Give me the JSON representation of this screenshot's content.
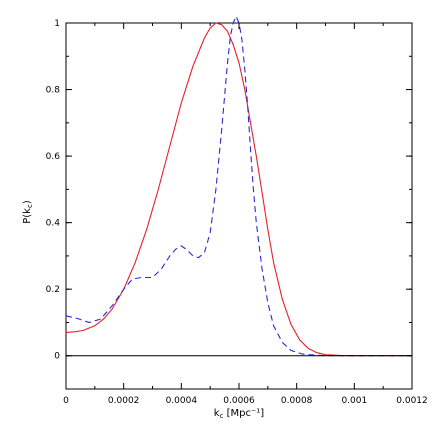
{
  "chart_data": {
    "type": "line",
    "xlabel": "k_c [Mpc⁻¹]",
    "xlabel_main": "k",
    "xlabel_sub": "c",
    "xlabel_rest": " [Mpc⁻¹]",
    "ylabel_main": "P(k",
    "ylabel_sub": "c",
    "ylabel_rest": ")",
    "xlim": [
      0,
      0.0012
    ],
    "ylim": [
      -0.1,
      1
    ],
    "x_ticks": [
      0,
      0.0002,
      0.0004,
      0.0006,
      0.0008,
      0.001,
      0.0012
    ],
    "x_tick_labels": [
      "0",
      "0.0002",
      "0.0004",
      "0.0006",
      "0.0008",
      "0.001",
      "0.0012"
    ],
    "y_ticks": [
      0,
      0.2,
      0.4,
      0.6,
      0.8,
      1
    ],
    "y_tick_labels": [
      "0",
      "0.2",
      "0.4",
      "0.6",
      "0.8",
      "1"
    ],
    "zero_line": 0,
    "grid": false,
    "series": [
      {
        "color": "#e8202a",
        "dash": "solid",
        "x": [
          0,
          3e-05,
          6e-05,
          0.0001,
          0.00013,
          0.00016,
          0.0002,
          0.00024,
          0.00028,
          0.00032,
          0.00036,
          0.0004,
          0.00044,
          0.00048,
          0.0005,
          0.00052,
          0.00054,
          0.00056,
          0.00058,
          0.0006,
          0.00062,
          0.00064,
          0.00066,
          0.00068,
          0.0007,
          0.00072,
          0.00075,
          0.00078,
          0.00081,
          0.00084,
          0.00087,
          0.0009,
          0.00095,
          0.001,
          0.0011,
          0.0012
        ],
        "y": [
          0.07,
          0.072,
          0.076,
          0.09,
          0.11,
          0.14,
          0.2,
          0.28,
          0.38,
          0.5,
          0.63,
          0.76,
          0.87,
          0.955,
          0.985,
          1.0,
          0.995,
          0.975,
          0.935,
          0.88,
          0.8,
          0.7,
          0.6,
          0.49,
          0.38,
          0.28,
          0.17,
          0.095,
          0.048,
          0.022,
          0.009,
          0.003,
          0.001,
          0,
          0,
          0
        ]
      },
      {
        "color": "#2a2ad8",
        "dash": "dashed",
        "x": [
          0,
          4e-05,
          8e-05,
          0.00012,
          0.00016,
          0.0002,
          0.00023,
          0.00026,
          0.0003,
          0.00033,
          0.00036,
          0.00038,
          0.0004,
          0.00042,
          0.00044,
          0.00046,
          0.00048,
          0.0005,
          0.00052,
          0.00054,
          0.00056,
          0.00057,
          0.00058,
          0.00059,
          0.0006,
          0.00061,
          0.00062,
          0.00063,
          0.00064,
          0.00065,
          0.00066,
          0.00068,
          0.0007,
          0.00072,
          0.00075,
          0.00078,
          0.00082,
          0.00086,
          0.0009,
          0.00095,
          0.001,
          0.0011,
          0.0012
        ],
        "y": [
          0.12,
          0.112,
          0.1,
          0.11,
          0.15,
          0.2,
          0.23,
          0.235,
          0.235,
          0.26,
          0.3,
          0.32,
          0.33,
          0.318,
          0.3,
          0.295,
          0.31,
          0.37,
          0.5,
          0.68,
          0.88,
          0.96,
          1.0,
          1.02,
          1.0,
          0.95,
          0.86,
          0.75,
          0.62,
          0.5,
          0.4,
          0.26,
          0.16,
          0.09,
          0.04,
          0.016,
          0.005,
          0.002,
          0,
          0,
          0,
          0,
          0
        ]
      },
      {
        "color": "#000000",
        "dash": "solid",
        "x": [
          0,
          0.0012
        ],
        "y": [
          0,
          0
        ]
      }
    ]
  }
}
